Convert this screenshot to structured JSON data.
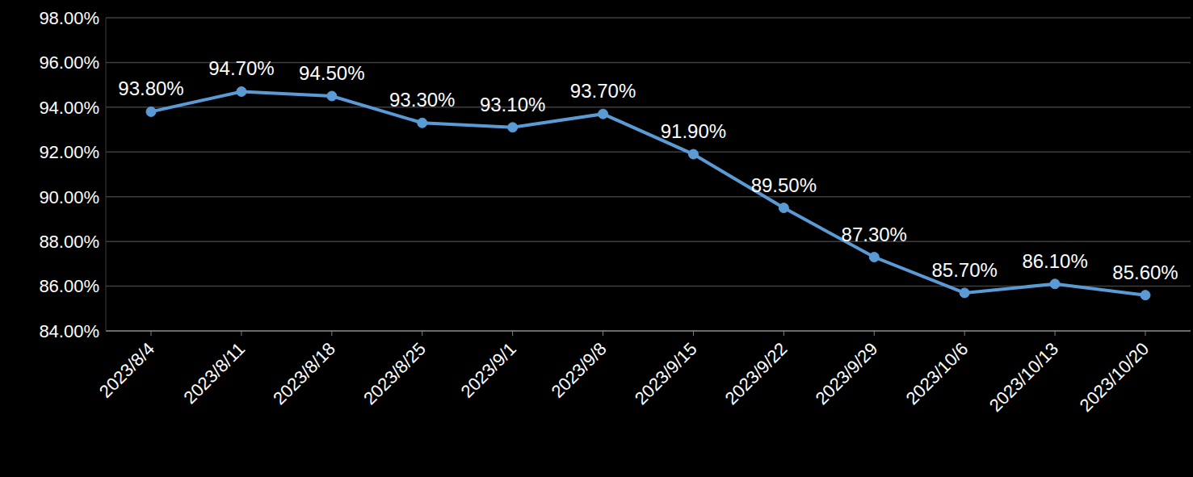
{
  "chart_data": {
    "type": "line",
    "categories": [
      "2023/8/4",
      "2023/8/11",
      "2023/8/18",
      "2023/8/25",
      "2023/9/1",
      "2023/9/8",
      "2023/9/15",
      "2023/9/22",
      "2023/9/29",
      "2023/10/6",
      "2023/10/13",
      "2023/10/20"
    ],
    "values": [
      93.8,
      94.7,
      94.5,
      93.3,
      93.1,
      93.7,
      91.9,
      89.5,
      87.3,
      85.7,
      86.1,
      85.6
    ],
    "value_labels": [
      "93.80%",
      "94.70%",
      "94.50%",
      "93.30%",
      "93.10%",
      "93.70%",
      "91.90%",
      "89.50%",
      "87.30%",
      "85.70%",
      "86.10%",
      "85.60%"
    ],
    "color": "#5b9bd5",
    "marker": "circle",
    "data_labels": true,
    "grid": true,
    "ylim": [
      84,
      98
    ],
    "yticks": [
      {
        "value": 84,
        "label": "84.00%"
      },
      {
        "value": 86,
        "label": "86.00%"
      },
      {
        "value": 88,
        "label": "88.00%"
      },
      {
        "value": 90,
        "label": "90.00%"
      },
      {
        "value": 92,
        "label": "92.00%"
      },
      {
        "value": 94,
        "label": "94.00%"
      },
      {
        "value": 96,
        "label": "96.00%"
      },
      {
        "value": 98,
        "label": "98.00%"
      }
    ]
  }
}
